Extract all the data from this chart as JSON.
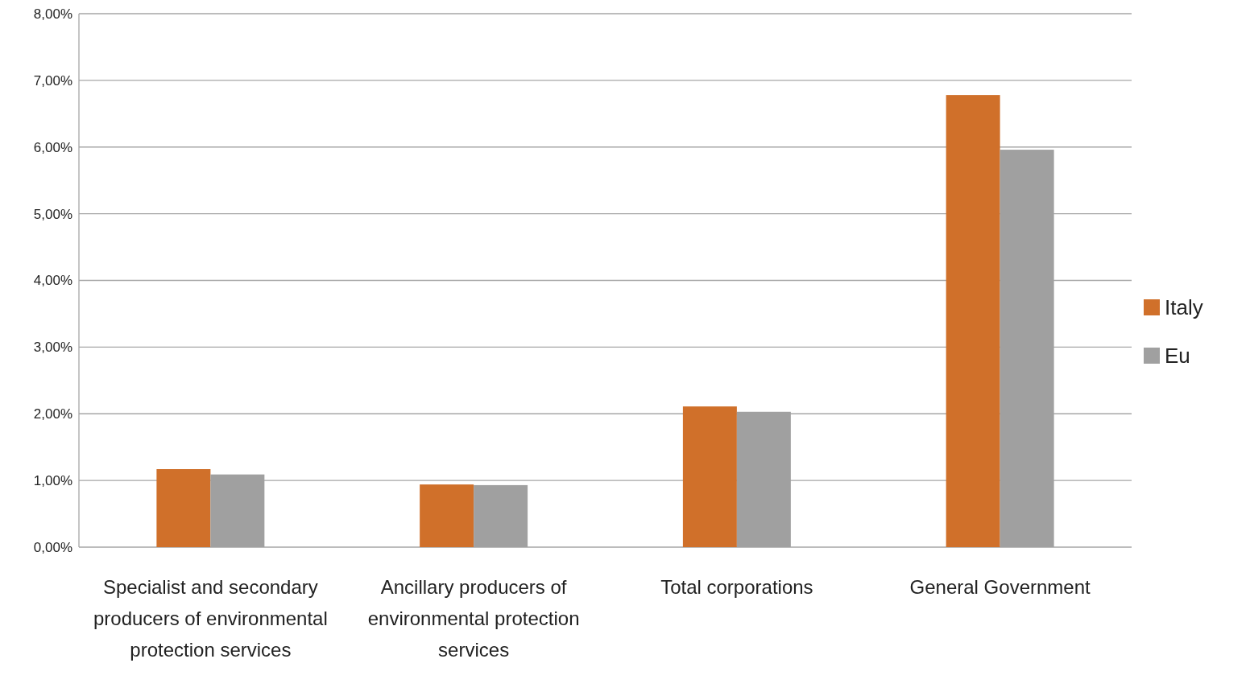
{
  "chart_data": {
    "type": "bar",
    "categories": [
      "Specialist and secondary producers of environmental protection services",
      "Ancillary producers of environmental protection services",
      "Total corporations",
      "General Government"
    ],
    "series": [
      {
        "name": "Italy",
        "color": "#d0702a",
        "values": [
          1.17,
          0.94,
          2.11,
          6.78
        ]
      },
      {
        "name": "Eu",
        "color": "#a0a0a0",
        "values": [
          1.09,
          0.93,
          2.03,
          5.96
        ]
      }
    ],
    "ylim": [
      0,
      8
    ],
    "yticks": [
      {
        "value": 0,
        "label": "0,00%"
      },
      {
        "value": 1,
        "label": "1,00%"
      },
      {
        "value": 2,
        "label": "2,00%"
      },
      {
        "value": 3,
        "label": "3,00%"
      },
      {
        "value": 4,
        "label": "4,00%"
      },
      {
        "value": 5,
        "label": "5,00%"
      },
      {
        "value": 6,
        "label": "6,00%"
      },
      {
        "value": 7,
        "label": "7,00%"
      },
      {
        "value": 8,
        "label": "8,00%"
      }
    ],
    "grid": "y",
    "legend": "right"
  }
}
